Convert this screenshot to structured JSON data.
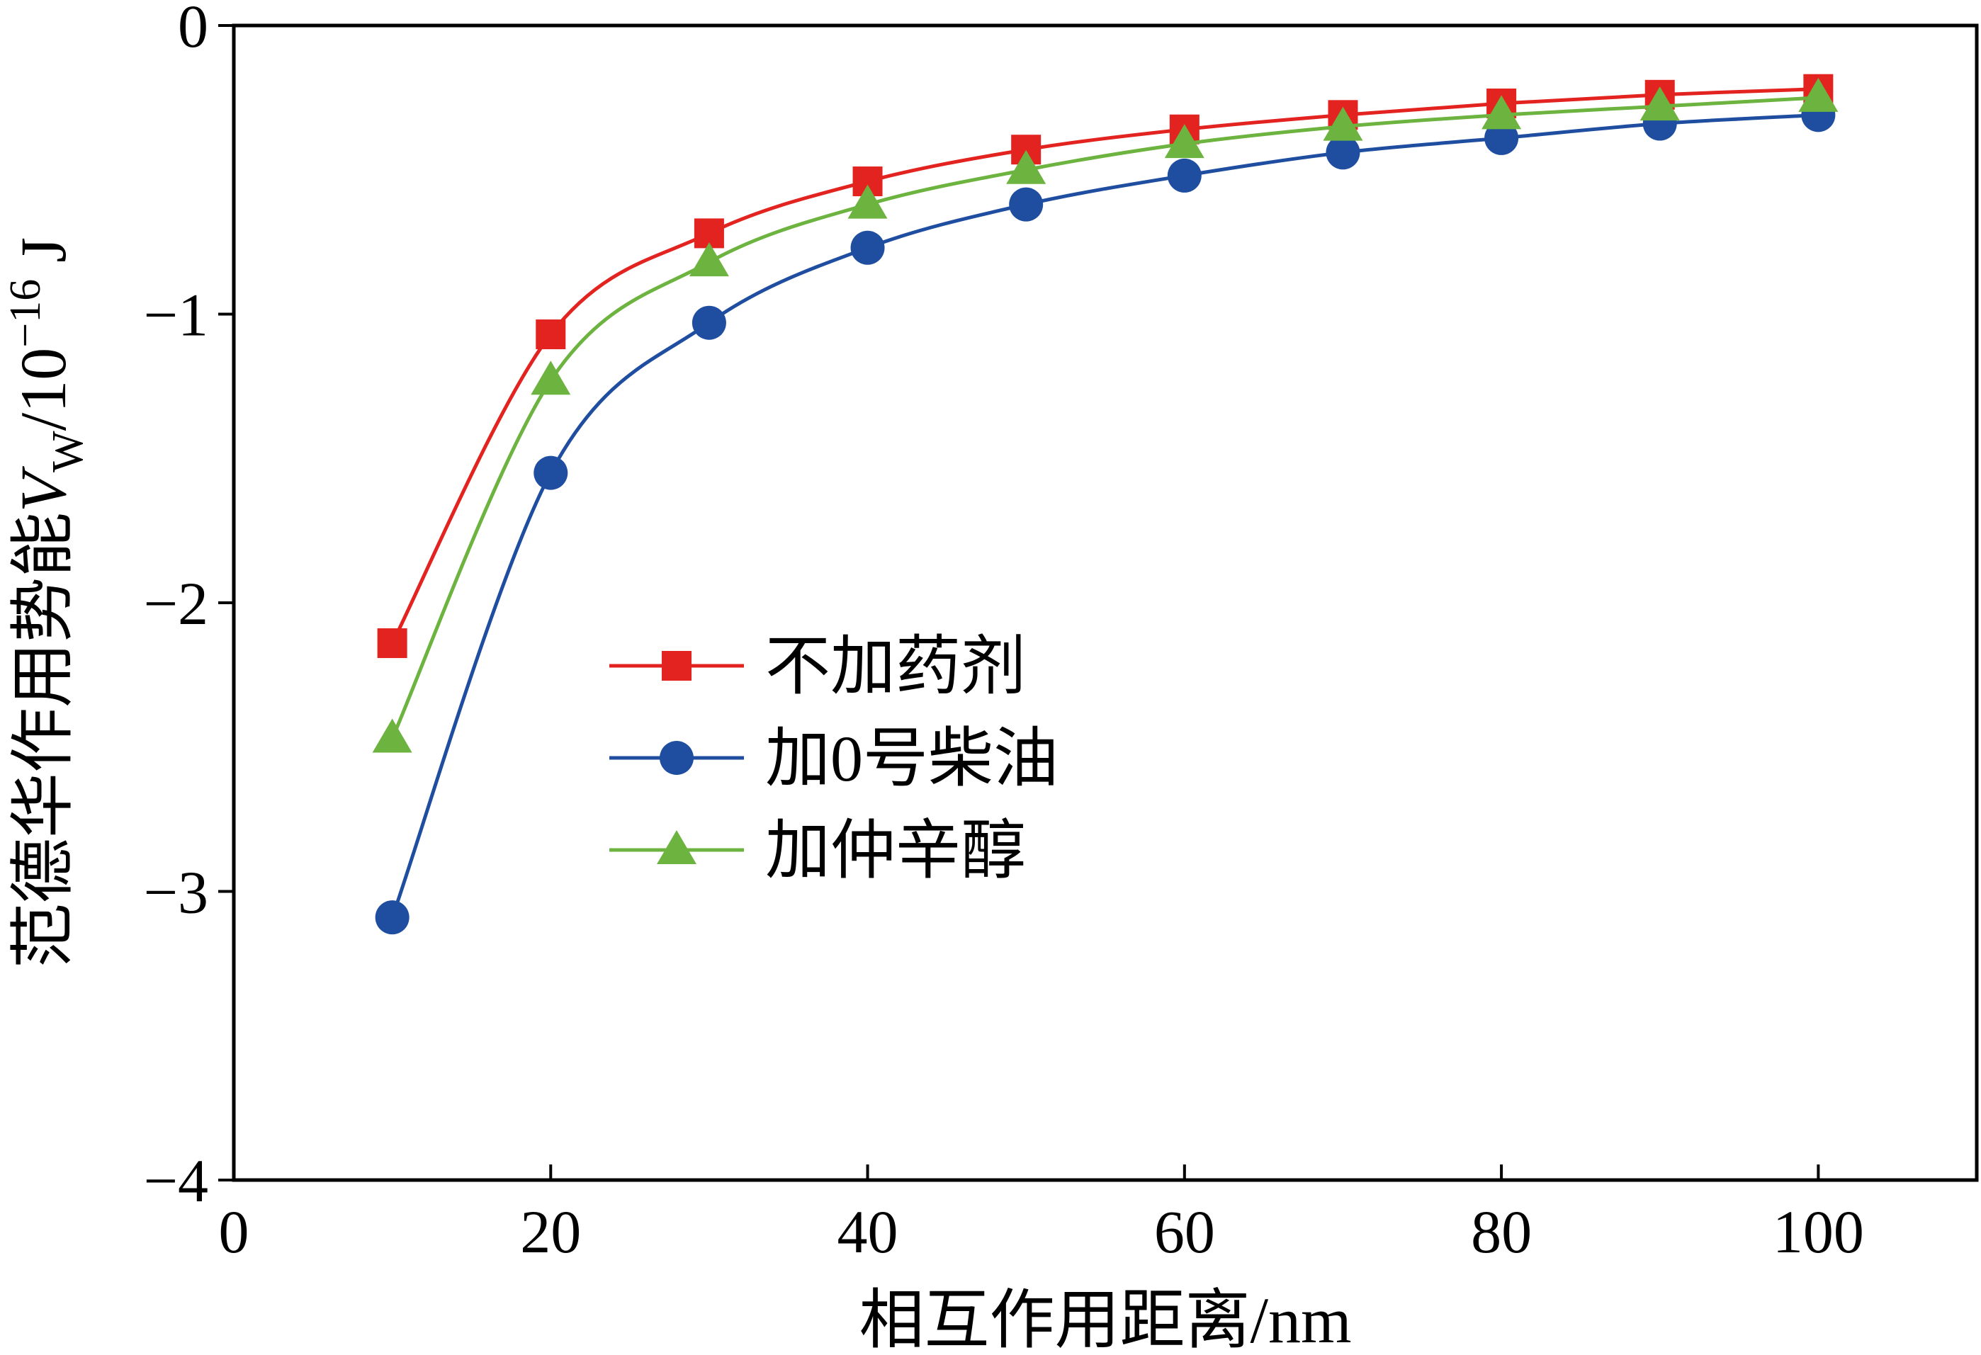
{
  "chart_data": {
    "type": "line",
    "xlabel": "相互作用距离/nm",
    "ylabel": {
      "prefix": "范德华作用势能",
      "symbol": "V",
      "subscript": "W",
      "unit_prefix": "/10",
      "exponent": "−16",
      "unit": " J"
    },
    "xlim": [
      0,
      110
    ],
    "ylim": [
      -4,
      0
    ],
    "xticks": [
      0,
      20,
      40,
      60,
      80,
      100
    ],
    "xtick_labels": [
      "0",
      "20",
      "40",
      "60",
      "80",
      "100"
    ],
    "yticks": [
      0,
      -1,
      -2,
      -3,
      -4
    ],
    "ytick_labels": [
      "0",
      "−1",
      "−2",
      "−3",
      "−4"
    ],
    "x": [
      10,
      20,
      30,
      40,
      50,
      60,
      70,
      80,
      90,
      100
    ],
    "series": [
      {
        "name": "不加药剂",
        "marker": "square",
        "color": "#e3231f",
        "values": [
          -2.14,
          -1.07,
          -0.72,
          -0.54,
          -0.43,
          -0.36,
          -0.31,
          -0.27,
          -0.24,
          -0.22
        ]
      },
      {
        "name": "加0号柴油",
        "marker": "circle",
        "color": "#1f4ea1",
        "values": [
          -3.09,
          -1.55,
          -1.03,
          -0.77,
          -0.62,
          -0.52,
          -0.44,
          -0.39,
          -0.34,
          -0.31
        ]
      },
      {
        "name": "加仲辛醇",
        "marker": "triangle",
        "color": "#6cb33f",
        "values": [
          -2.47,
          -1.23,
          -0.82,
          -0.62,
          -0.5,
          -0.41,
          -0.35,
          -0.31,
          -0.28,
          -0.25
        ]
      }
    ],
    "legend_position": "center-left",
    "grid": false
  }
}
